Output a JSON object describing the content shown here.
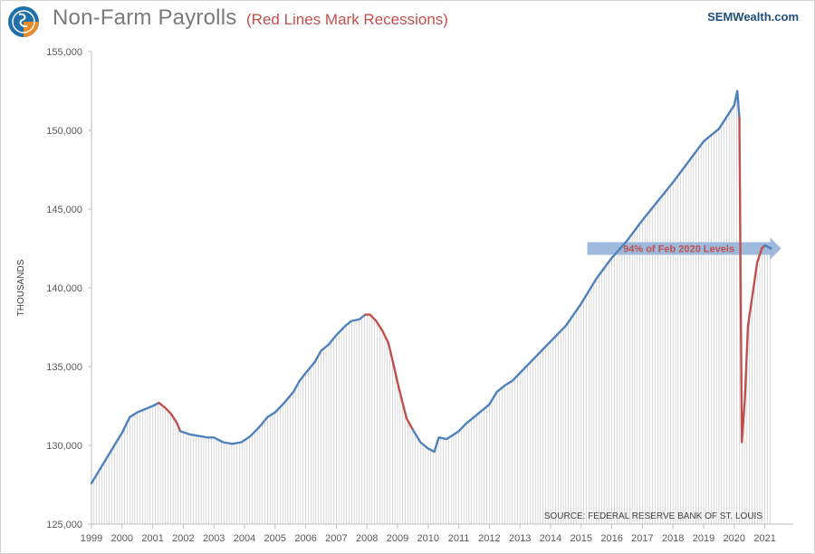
{
  "header": {
    "title": "Non-Farm  Payrolls",
    "subtitle": "(Red Lines Mark Recessions)",
    "brand": "SEMWealth.com",
    "logo_icon": "semwealth-logo-icon"
  },
  "colors": {
    "line": "#4f81bd",
    "recession": "#c0504d",
    "grid": "#bfbfbf",
    "arrow": "#8eaed6",
    "annotation_text": "#c0504d"
  },
  "chart_data": {
    "type": "line",
    "title": "Non-Farm  Payrolls",
    "subtitle": "(Red Lines Mark Recessions)",
    "ylabel": "THOUSANDS",
    "xlabel": "",
    "ylim": [
      125000,
      155000
    ],
    "xlim": [
      1999.0,
      2021.8
    ],
    "y_ticks": [
      125000,
      130000,
      135000,
      140000,
      145000,
      150000,
      155000
    ],
    "y_tick_labels": [
      "125,000",
      "130,000",
      "135,000",
      "140,000",
      "145,000",
      "150,000",
      "155,000"
    ],
    "x_ticks": [
      1999,
      2000,
      2001,
      2002,
      2003,
      2004,
      2005,
      2006,
      2007,
      2008,
      2009,
      2010,
      2011,
      2012,
      2013,
      2014,
      2015,
      2016,
      2017,
      2018,
      2019,
      2020,
      2021
    ],
    "x_tick_labels": [
      "1999",
      "2000",
      "2001",
      "2002",
      "2003",
      "2004",
      "2005",
      "2006",
      "2007",
      "2008",
      "2009",
      "2010",
      "2011",
      "2012",
      "2013",
      "2014",
      "2015",
      "2016",
      "2017",
      "2018",
      "2019",
      "2020",
      "2021"
    ],
    "grid": "vertical monthly drop lines",
    "series": [
      {
        "name": "",
        "color": "#4f81bd",
        "points": [
          [
            1999.0,
            127600
          ],
          [
            1999.25,
            128400
          ],
          [
            1999.5,
            129200
          ],
          [
            1999.75,
            130000
          ],
          [
            2000.0,
            130800
          ],
          [
            2000.25,
            131800
          ],
          [
            2000.5,
            132100
          ],
          [
            2000.75,
            132300
          ],
          [
            2001.0,
            132500
          ],
          [
            2001.2,
            132700
          ]
        ]
      },
      {
        "name": "",
        "color": "#c0504d",
        "points": [
          [
            2001.2,
            132700
          ],
          [
            2001.4,
            132400
          ],
          [
            2001.6,
            132000
          ],
          [
            2001.8,
            131400
          ],
          [
            2001.9,
            130900
          ]
        ]
      },
      {
        "name": "",
        "color": "#4f81bd",
        "points": [
          [
            2001.9,
            130900
          ],
          [
            2002.2,
            130700
          ],
          [
            2002.5,
            130600
          ],
          [
            2002.8,
            130500
          ],
          [
            2003.0,
            130500
          ],
          [
            2003.3,
            130200
          ],
          [
            2003.6,
            130100
          ],
          [
            2003.9,
            130200
          ],
          [
            2004.2,
            130600
          ],
          [
            2004.5,
            131200
          ],
          [
            2004.75,
            131800
          ],
          [
            2005.0,
            132100
          ],
          [
            2005.3,
            132700
          ],
          [
            2005.6,
            133400
          ],
          [
            2005.8,
            134100
          ],
          [
            2006.0,
            134600
          ],
          [
            2006.3,
            135300
          ],
          [
            2006.5,
            136000
          ],
          [
            2006.75,
            136400
          ],
          [
            2007.0,
            137000
          ],
          [
            2007.3,
            137600
          ],
          [
            2007.5,
            137900
          ],
          [
            2007.75,
            138000
          ],
          [
            2007.95,
            138300
          ]
        ]
      },
      {
        "name": "",
        "color": "#c0504d",
        "points": [
          [
            2007.95,
            138300
          ],
          [
            2008.1,
            138300
          ],
          [
            2008.3,
            137900
          ],
          [
            2008.5,
            137300
          ],
          [
            2008.7,
            136500
          ],
          [
            2008.85,
            135300
          ],
          [
            2009.0,
            134000
          ],
          [
            2009.15,
            132800
          ],
          [
            2009.3,
            131700
          ],
          [
            2009.5,
            131000
          ]
        ]
      },
      {
        "name": "",
        "color": "#4f81bd",
        "points": [
          [
            2009.5,
            131000
          ],
          [
            2009.75,
            130200
          ],
          [
            2010.0,
            129800
          ],
          [
            2010.2,
            129600
          ],
          [
            2010.35,
            130500
          ],
          [
            2010.6,
            130400
          ],
          [
            2010.85,
            130700
          ],
          [
            2011.0,
            130900
          ],
          [
            2011.25,
            131400
          ],
          [
            2011.5,
            131800
          ],
          [
            2011.75,
            132200
          ],
          [
            2012.0,
            132600
          ],
          [
            2012.25,
            133400
          ],
          [
            2012.5,
            133800
          ],
          [
            2012.75,
            134100
          ],
          [
            2013.0,
            134600
          ],
          [
            2013.5,
            135600
          ],
          [
            2014.0,
            136600
          ],
          [
            2014.5,
            137600
          ],
          [
            2015.0,
            139000
          ],
          [
            2015.5,
            140600
          ],
          [
            2016.0,
            141900
          ],
          [
            2016.5,
            143000
          ],
          [
            2017.0,
            144300
          ],
          [
            2017.5,
            145500
          ],
          [
            2018.0,
            146700
          ],
          [
            2018.5,
            148000
          ],
          [
            2019.0,
            149300
          ],
          [
            2019.5,
            150100
          ],
          [
            2020.0,
            151600
          ],
          [
            2020.1,
            152500
          ],
          [
            2020.17,
            150800
          ]
        ]
      },
      {
        "name": "",
        "color": "#c0504d",
        "points": [
          [
            2020.17,
            150800
          ],
          [
            2020.25,
            130200
          ],
          [
            2020.35,
            133000
          ],
          [
            2020.45,
            137600
          ],
          [
            2020.6,
            139600
          ],
          [
            2020.75,
            141600
          ],
          [
            2020.9,
            142500
          ],
          [
            2021.0,
            142700
          ]
        ]
      },
      {
        "name": "",
        "color": "#4f81bd",
        "points": [
          [
            2021.0,
            142700
          ],
          [
            2021.2,
            142500
          ]
        ]
      }
    ],
    "annotations": [
      {
        "text": "94% of Feb 2020 Levels",
        "x_start": 2015.2,
        "x_end": 2021.0,
        "y": 142500
      },
      {
        "text": "SOURCE: FEDERAL RESERVE BANK OF ST. LOUIS"
      }
    ]
  }
}
